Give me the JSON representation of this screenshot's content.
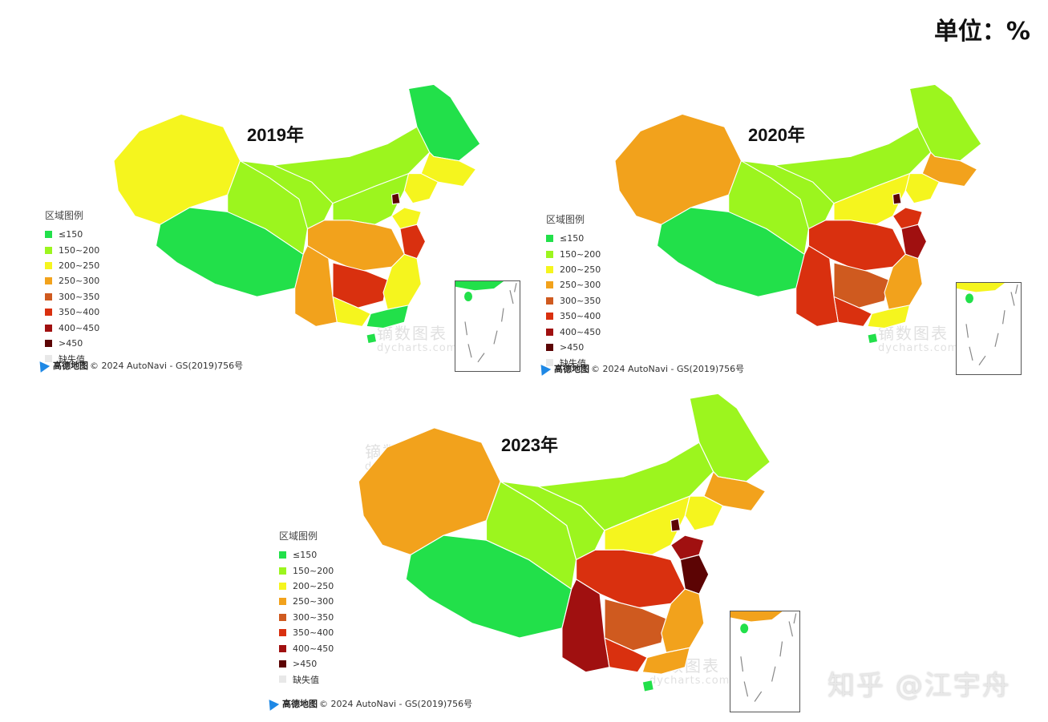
{
  "unit_label": "单位：%",
  "legend": {
    "title": "区域图例",
    "items": [
      {
        "label": "≤150",
        "color": "#22e04a"
      },
      {
        "label": "150~200",
        "color": "#9cf51e"
      },
      {
        "label": "200~250",
        "color": "#f5f51e"
      },
      {
        "label": "250~300",
        "color": "#f2a21c"
      },
      {
        "label": "300~350",
        "color": "#cf5a1f"
      },
      {
        "label": "350~400",
        "color": "#d9300f"
      },
      {
        "label": "400~450",
        "color": "#a01010"
      },
      {
        "label": ">450",
        "color": "#5c0404"
      },
      {
        "label": "缺失值",
        "color": "#e8e8e8"
      }
    ]
  },
  "credit": {
    "brand": "高德地图",
    "text": "© 2024 AutoNavi - GS(2019)756号"
  },
  "watermark": {
    "text": "镝数图表",
    "sub": "dycharts.com",
    "copyright_glyph": "©"
  },
  "panels": [
    {
      "year": "2019年",
      "region_bins": {
        "xinjiang": "200~250",
        "tibet": "≤150",
        "qinghai": "150~200",
        "gansu": "150~200",
        "inner_mongolia": "150~200",
        "heilongjiang": "≤150",
        "jilin": "200~250",
        "liaoning": "200~250",
        "north_china": "150~200",
        "shandong": "200~250",
        "jiangsu": "350~400",
        "central_west": "250~300",
        "hunan_guizhou": "350~400",
        "south_east": "200~250",
        "guangxi": "200~250",
        "guangdong": "≤150",
        "hainan": "≤150",
        "beijing": ">450"
      }
    },
    {
      "year": "2020年",
      "region_bins": {
        "xinjiang": "250~300",
        "tibet": "≤150",
        "qinghai": "150~200",
        "gansu": "150~200",
        "inner_mongolia": "150~200",
        "heilongjiang": "150~200",
        "jilin": "250~300",
        "liaoning": "200~250",
        "north_china": "200~250",
        "shandong": "350~400",
        "jiangsu": "400~450",
        "central_west": "350~400",
        "hunan_guizhou": "300~350",
        "south_east": "250~300",
        "guangxi": "350~400",
        "guangdong": "200~250",
        "hainan": "≤150",
        "beijing": ">450"
      }
    },
    {
      "year": "2023年",
      "region_bins": {
        "xinjiang": "250~300",
        "tibet": "≤150",
        "qinghai": "150~200",
        "gansu": "150~200",
        "inner_mongolia": "150~200",
        "heilongjiang": "150~200",
        "jilin": "250~300",
        "liaoning": "200~250",
        "north_china": "200~250",
        "shandong": "400~450",
        "jiangsu": ">450",
        "central_west": "350~400",
        "hunan_guizhou": "300~350",
        "south_east": "250~300",
        "guangxi": "350~400",
        "guangdong": "250~300",
        "hainan": "≤150",
        "beijing": ">450",
        "sichuan_yunnan": "400~450"
      }
    }
  ],
  "corner_watermark": "知乎 @江宇舟"
}
